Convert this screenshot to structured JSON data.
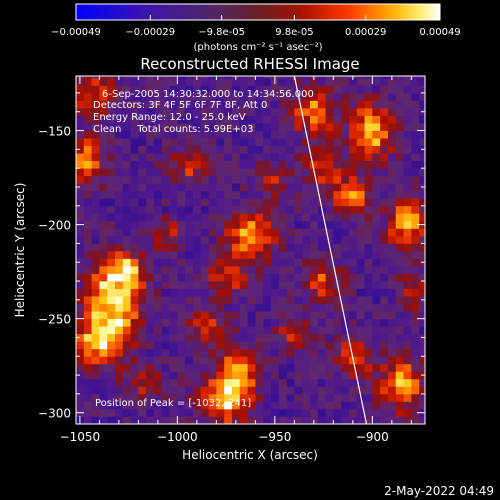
{
  "chart_data": {
    "type": "heatmap",
    "title": "Reconstructed RHESSI Image",
    "xlabel": "Heliocentric X (arcsec)",
    "ylabel": "Heliocentric Y (arcsec)",
    "xlim": [
      -1052,
      -873
    ],
    "ylim": [
      -306,
      -121
    ],
    "xticks": [
      -1050,
      -1000,
      -950,
      -900
    ],
    "yticks": [
      -150,
      -200,
      -250,
      -300
    ],
    "colorbar": {
      "ticks": [
        "-0.00049",
        "-0.00029",
        "-9.8e-05",
        "9.8e-05",
        "0.00029",
        "0.00049"
      ],
      "tick_values": [
        -0.00049,
        -0.00029,
        -9.8e-05,
        9.8e-05,
        0.00029,
        0.00049
      ],
      "range": [
        -0.00049,
        0.00049
      ],
      "units": "(photons cm⁻² s⁻¹ asec⁻²)"
    },
    "annotations": [
      "6-Sep-2005 14:30:32.000 to 14:34:56.000",
      "Detectors: 3F 4F 5F 6F 7F 8F, Att 0",
      "Energy Range: 12.0 - 25.0 keV",
      "Clean     Total counts: 5.99E+03",
      "Position of Peak = [-1032,-241]"
    ],
    "peak": [
      -1032,
      -241
    ],
    "limb_line": [
      [
        -940,
        -121
      ],
      [
        -903,
        -306
      ]
    ],
    "blobs": [
      {
        "x": -1032,
        "y": -241,
        "amp": 1.0,
        "sx": 10,
        "sy": 14
      },
      {
        "x": -1040,
        "y": -262,
        "amp": 0.85,
        "sx": 9,
        "sy": 10
      },
      {
        "x": -1028,
        "y": -225,
        "amp": 0.7,
        "sx": 8,
        "sy": 8
      },
      {
        "x": -975,
        "y": -292,
        "amp": 0.95,
        "sx": 9,
        "sy": 10
      },
      {
        "x": -968,
        "y": -278,
        "amp": 0.75,
        "sx": 7,
        "sy": 8
      },
      {
        "x": -1047,
        "y": -165,
        "amp": 0.75,
        "sx": 7,
        "sy": 9
      },
      {
        "x": -1043,
        "y": -130,
        "amp": 0.6,
        "sx": 9,
        "sy": 8
      },
      {
        "x": -962,
        "y": -205,
        "amp": 0.9,
        "sx": 9,
        "sy": 10
      },
      {
        "x": -975,
        "y": -228,
        "amp": 0.6,
        "sx": 7,
        "sy": 7
      },
      {
        "x": -995,
        "y": -168,
        "amp": 0.55,
        "sx": 7,
        "sy": 7
      },
      {
        "x": -985,
        "y": -255,
        "amp": 0.5,
        "sx": 8,
        "sy": 7
      },
      {
        "x": -930,
        "y": -140,
        "amp": 0.75,
        "sx": 8,
        "sy": 9
      },
      {
        "x": -925,
        "y": -170,
        "amp": 0.6,
        "sx": 7,
        "sy": 8
      },
      {
        "x": -900,
        "y": -150,
        "amp": 0.95,
        "sx": 8,
        "sy": 10
      },
      {
        "x": -910,
        "y": -185,
        "amp": 0.7,
        "sx": 7,
        "sy": 8
      },
      {
        "x": -882,
        "y": -200,
        "amp": 0.85,
        "sx": 7,
        "sy": 10
      },
      {
        "x": -878,
        "y": -235,
        "amp": 0.55,
        "sx": 6,
        "sy": 7
      },
      {
        "x": -925,
        "y": -230,
        "amp": 0.6,
        "sx": 7,
        "sy": 8
      },
      {
        "x": -885,
        "y": -285,
        "amp": 0.85,
        "sx": 8,
        "sy": 10
      },
      {
        "x": -910,
        "y": -270,
        "amp": 0.65,
        "sx": 7,
        "sy": 8
      },
      {
        "x": -940,
        "y": -258,
        "amp": 0.55,
        "sx": 6,
        "sy": 6
      },
      {
        "x": -1005,
        "y": -205,
        "amp": 0.45,
        "sx": 6,
        "sy": 6
      },
      {
        "x": -1015,
        "y": -285,
        "amp": 0.5,
        "sx": 7,
        "sy": 6
      },
      {
        "x": -950,
        "y": -175,
        "amp": 0.45,
        "sx": 6,
        "sy": 6
      }
    ]
  },
  "footer": {
    "timestamp": "2-May-2022 04:49"
  }
}
